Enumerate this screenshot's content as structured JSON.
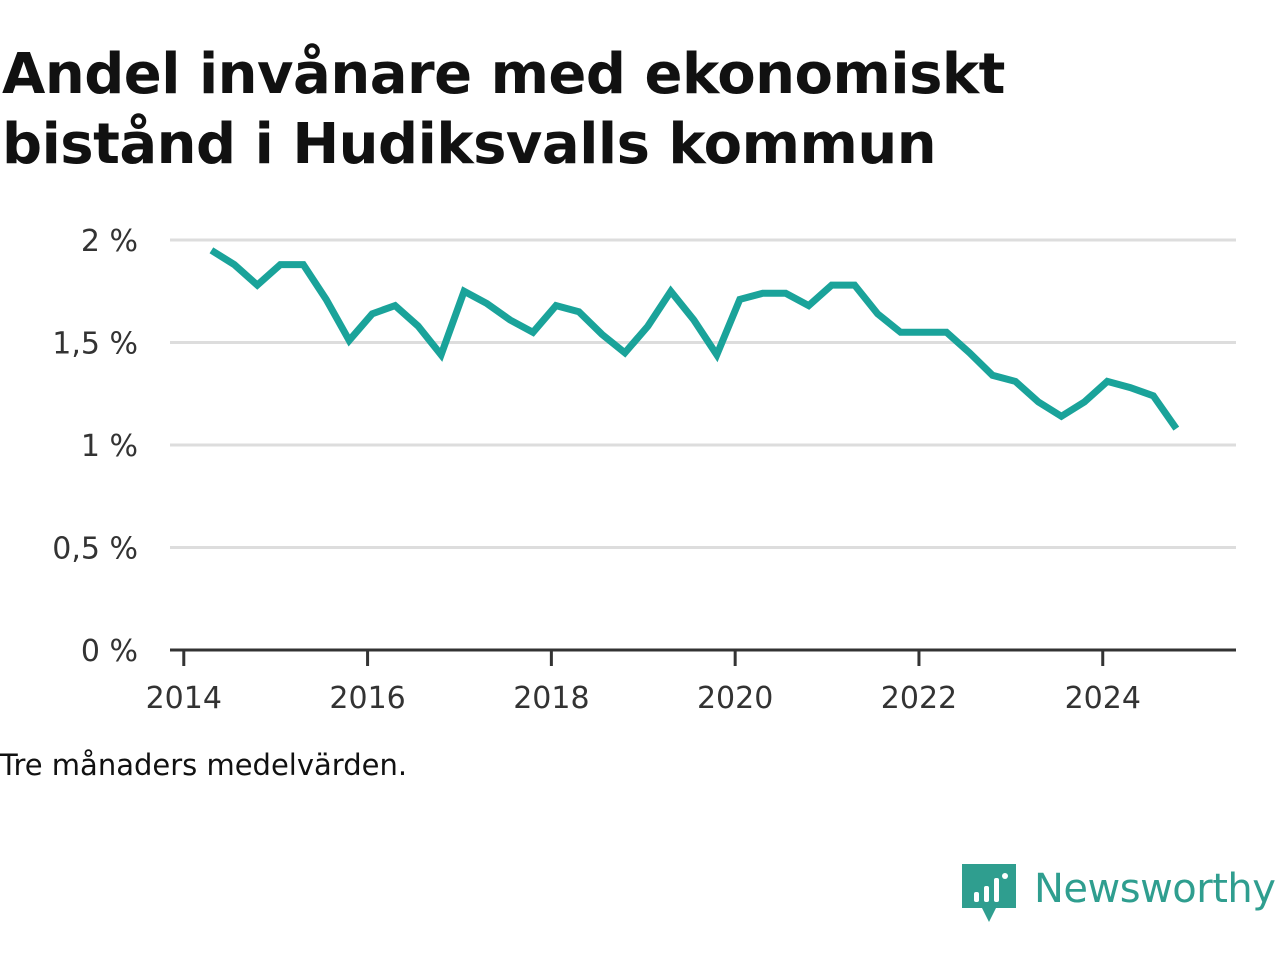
{
  "chart_data": {
    "type": "line",
    "title": "Andel invånare med ekonomiskt bistånd i Hudiksvalls kommun",
    "note": "Tre månaders medelvärden.",
    "ylim": [
      0,
      2
    ],
    "y_ticks": [
      {
        "value": 0,
        "label": "0 %"
      },
      {
        "value": 0.5,
        "label": "0,5 %"
      },
      {
        "value": 1,
        "label": "1 %"
      },
      {
        "value": 1.5,
        "label": "1,5 %"
      },
      {
        "value": 2,
        "label": "2 %"
      }
    ],
    "xlim": [
      2013.85,
      2025.45
    ],
    "x_ticks": [
      {
        "value": 2014,
        "label": "2014"
      },
      {
        "value": 2016,
        "label": "2016"
      },
      {
        "value": 2018,
        "label": "2018"
      },
      {
        "value": 2020,
        "label": "2020"
      },
      {
        "value": 2022,
        "label": "2022"
      },
      {
        "value": 2024,
        "label": "2024"
      }
    ],
    "grid": true,
    "color": "#1aa39a",
    "series": [
      {
        "x": [
          2014.3,
          2014.55,
          2014.8,
          2015.05,
          2015.3,
          2015.55,
          2015.8,
          2016.05,
          2016.3,
          2016.55,
          2016.8,
          2017.05,
          2017.3,
          2017.55,
          2017.8,
          2018.05,
          2018.3,
          2018.55,
          2018.8,
          2019.05,
          2019.3,
          2019.55,
          2019.8,
          2020.05,
          2020.3,
          2020.55,
          2020.8,
          2021.05,
          2021.3,
          2021.55,
          2021.8,
          2022.05,
          2022.3,
          2022.55,
          2022.8,
          2023.05,
          2023.3,
          2023.55,
          2023.8,
          2024.05,
          2024.3,
          2024.55,
          2024.8
        ],
        "values": [
          1.95,
          1.88,
          1.78,
          1.88,
          1.88,
          1.71,
          1.51,
          1.64,
          1.68,
          1.58,
          1.44,
          1.75,
          1.69,
          1.61,
          1.55,
          1.68,
          1.65,
          1.54,
          1.45,
          1.58,
          1.75,
          1.61,
          1.44,
          1.71,
          1.74,
          1.74,
          1.68,
          1.78,
          1.78,
          1.64,
          1.55,
          1.55,
          1.55,
          1.45,
          1.34,
          1.31,
          1.21,
          1.14,
          1.21,
          1.31,
          1.28,
          1.24,
          1.08
        ]
      }
    ]
  },
  "brand": {
    "name": "Newsworthy",
    "icon": "newsworthy-logo-icon",
    "color": "#2f9e8f"
  }
}
